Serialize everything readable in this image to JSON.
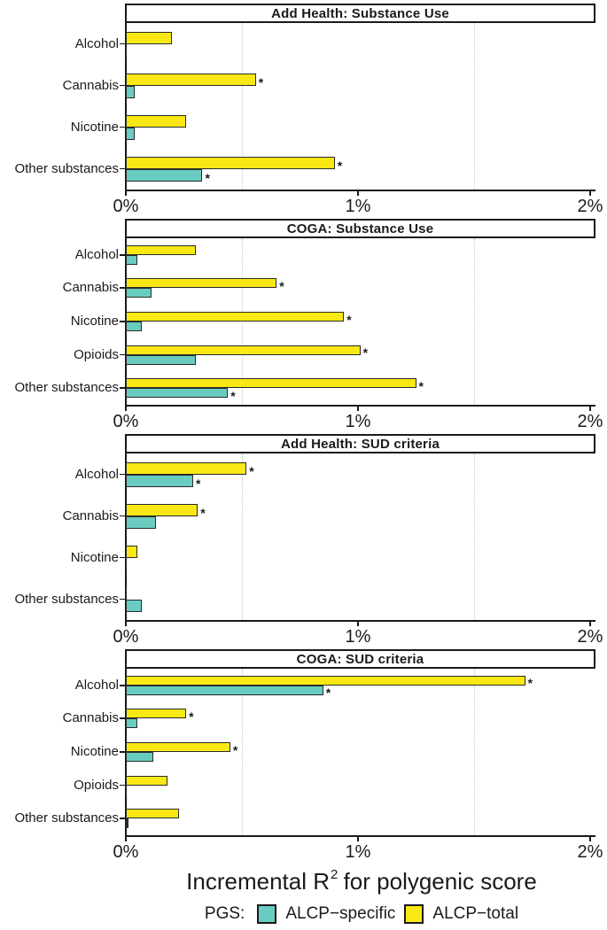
{
  "figure": {
    "x_axis_title": {
      "prefix": "Incremental R",
      "sup": "2",
      "suffix": " for polygenic score"
    },
    "legend": {
      "label": "PGS:",
      "entries": [
        {
          "name": "ALCP−specific",
          "color": "#69CCC0"
        },
        {
          "name": "ALCP−total",
          "color": "#F9E814"
        }
      ]
    },
    "colors": {
      "bar_border": "#2a2a2a",
      "axis": "#1a1a1a",
      "gridline": "#c9c9c9"
    }
  },
  "chart_data": [
    {
      "type": "bar",
      "orientation": "horizontal",
      "title": "Add Health: Substance Use",
      "categories": [
        "Alcohol",
        "Cannabis",
        "Nicotine",
        "Other substances"
      ],
      "xlim": [
        0,
        2
      ],
      "x_tick_labels": [
        "0%",
        "1%",
        "2%"
      ],
      "gridlines_pct": [
        0.5,
        1.5
      ],
      "unit": "%",
      "series": [
        {
          "name": "ALCP−total",
          "color": "#F9E814",
          "values": [
            0.2,
            0.56,
            0.26,
            0.9
          ],
          "sig": [
            false,
            true,
            false,
            true
          ]
        },
        {
          "name": "ALCP−specific",
          "color": "#69CCC0",
          "values": [
            0.005,
            0.04,
            0.04,
            0.33
          ],
          "sig": [
            false,
            false,
            false,
            true
          ]
        }
      ]
    },
    {
      "type": "bar",
      "orientation": "horizontal",
      "title": "COGA: Substance Use",
      "categories": [
        "Alcohol",
        "Cannabis",
        "Nicotine",
        "Opioids",
        "Other substances"
      ],
      "xlim": [
        0,
        2
      ],
      "x_tick_labels": [
        "0%",
        "1%",
        "2%"
      ],
      "gridlines_pct": [
        0.5,
        1.5
      ],
      "unit": "%",
      "series": [
        {
          "name": "ALCP−total",
          "color": "#F9E814",
          "values": [
            0.3,
            0.65,
            0.94,
            1.01,
            1.25
          ],
          "sig": [
            false,
            true,
            true,
            true,
            true
          ]
        },
        {
          "name": "ALCP−specific",
          "color": "#69CCC0",
          "values": [
            0.05,
            0.11,
            0.07,
            0.3,
            0.44
          ],
          "sig": [
            false,
            false,
            false,
            false,
            true
          ]
        }
      ]
    },
    {
      "type": "bar",
      "orientation": "horizontal",
      "title": "Add Health: SUD criteria",
      "categories": [
        "Alcohol",
        "Cannabis",
        "Nicotine",
        "Other substances"
      ],
      "xlim": [
        0,
        2
      ],
      "x_tick_labels": [
        "0%",
        "1%",
        "2%"
      ],
      "gridlines_pct": [
        0.5,
        1.5
      ],
      "unit": "%",
      "series": [
        {
          "name": "ALCP−total",
          "color": "#F9E814",
          "values": [
            0.52,
            0.31,
            0.05,
            0.002
          ],
          "sig": [
            true,
            true,
            false,
            false
          ]
        },
        {
          "name": "ALCP−specific",
          "color": "#69CCC0",
          "values": [
            0.29,
            0.13,
            0.002,
            0.07
          ],
          "sig": [
            true,
            false,
            false,
            false
          ]
        }
      ]
    },
    {
      "type": "bar",
      "orientation": "horizontal",
      "title": "COGA: SUD criteria",
      "categories": [
        "Alcohol",
        "Cannabis",
        "Nicotine",
        "Opioids",
        "Other substances"
      ],
      "xlim": [
        0,
        2
      ],
      "x_tick_labels": [
        "0%",
        "1%",
        "2%"
      ],
      "gridlines_pct": [
        0.5,
        1.5
      ],
      "unit": "%",
      "series": [
        {
          "name": "ALCP−total",
          "color": "#F9E814",
          "values": [
            1.72,
            0.26,
            0.45,
            0.18,
            0.23
          ],
          "sig": [
            true,
            true,
            true,
            false,
            false
          ]
        },
        {
          "name": "ALCP−specific",
          "color": "#69CCC0",
          "values": [
            0.85,
            0.05,
            0.12,
            0.002,
            0.01
          ],
          "sig": [
            true,
            false,
            false,
            false,
            false
          ]
        }
      ]
    }
  ]
}
